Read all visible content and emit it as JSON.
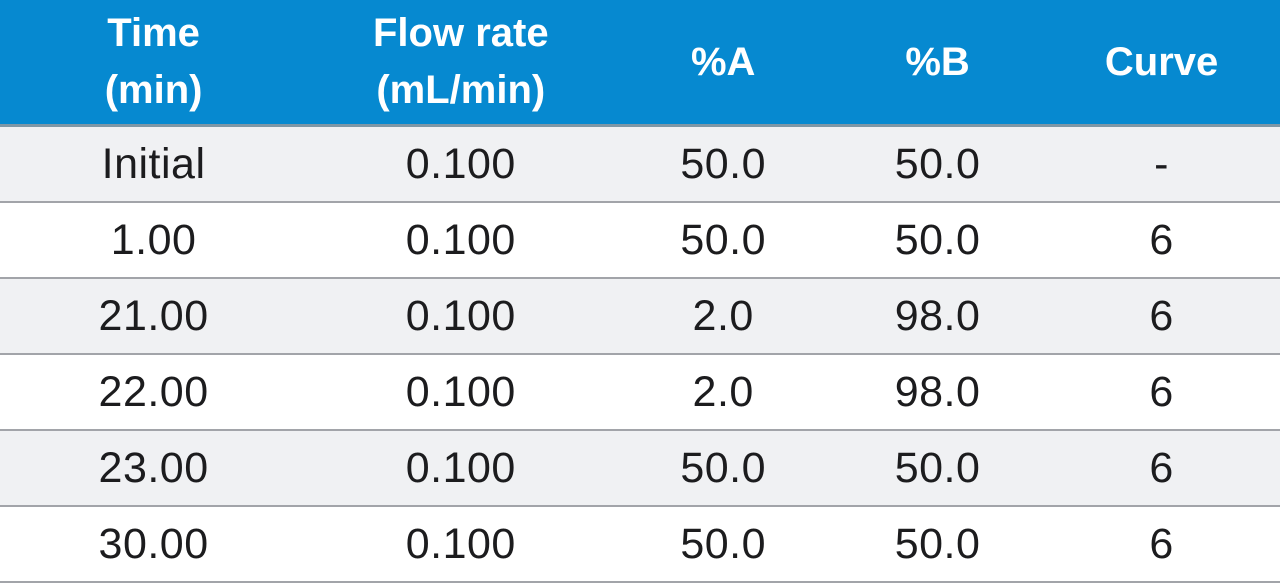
{
  "table": {
    "name": "hplc-gradient-table",
    "header_bg": "#0689d0",
    "header_text_color": "#ffffff",
    "stripe_gray": "#f0f1f3",
    "stripe_white": "#ffffff",
    "row_border_color": "#a2a4a9",
    "columns": [
      {
        "label": "Time\n(min)"
      },
      {
        "label": "Flow rate\n(mL/min)"
      },
      {
        "label": "%A"
      },
      {
        "label": "%B"
      },
      {
        "label": "Curve"
      }
    ],
    "rows": [
      {
        "cells": [
          "Initial",
          "0.100",
          "50.0",
          "50.0",
          "-"
        ]
      },
      {
        "cells": [
          "1.00",
          "0.100",
          "50.0",
          "50.0",
          "6"
        ]
      },
      {
        "cells": [
          "21.00",
          "0.100",
          "2.0",
          "98.0",
          "6"
        ]
      },
      {
        "cells": [
          "22.00",
          "0.100",
          "2.0",
          "98.0",
          "6"
        ]
      },
      {
        "cells": [
          "23.00",
          "0.100",
          "50.0",
          "50.0",
          "6"
        ]
      },
      {
        "cells": [
          "30.00",
          "0.100",
          "50.0",
          "50.0",
          "6"
        ]
      }
    ]
  }
}
